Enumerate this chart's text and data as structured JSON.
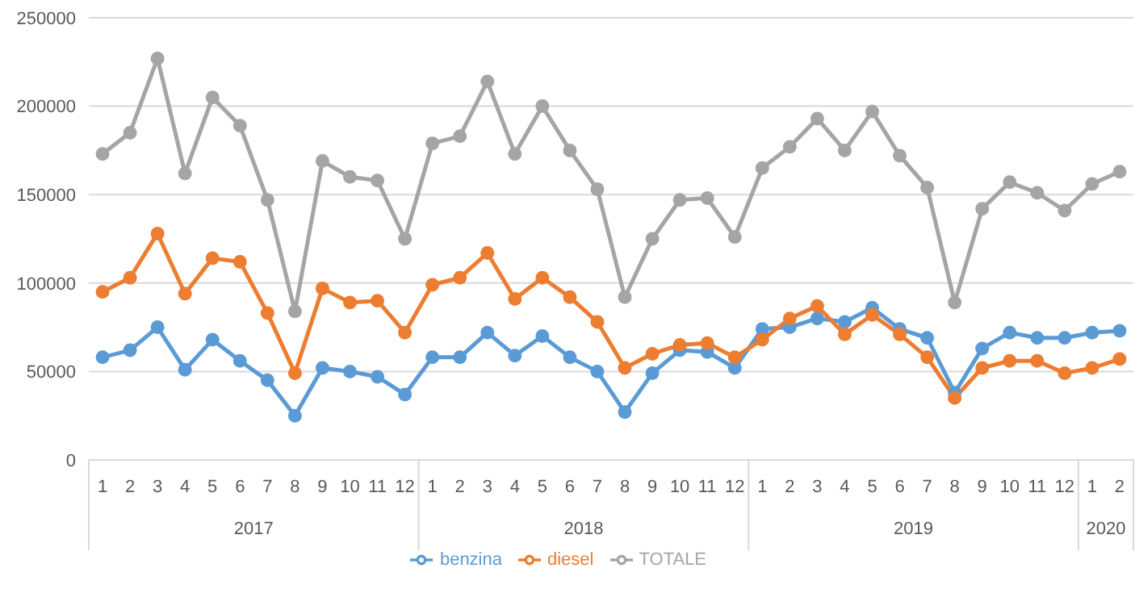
{
  "chart_data": {
    "type": "line",
    "categories": [
      "1",
      "2",
      "3",
      "4",
      "5",
      "6",
      "7",
      "8",
      "9",
      "10",
      "11",
      "12",
      "1",
      "2",
      "3",
      "4",
      "5",
      "6",
      "7",
      "8",
      "9",
      "10",
      "11",
      "12",
      "1",
      "2",
      "3",
      "4",
      "5",
      "6",
      "7",
      "8",
      "9",
      "10",
      "11",
      "12",
      "1",
      "2"
    ],
    "annotations": [
      "2017",
      "2018",
      "2019",
      "2020"
    ],
    "series": [
      {
        "name": "benzina",
        "color": "#5b9bd5",
        "values": [
          58000,
          62000,
          75000,
          51000,
          68000,
          56000,
          45000,
          25000,
          52000,
          50000,
          47000,
          37000,
          58000,
          58000,
          72000,
          59000,
          70000,
          58000,
          50000,
          27000,
          49000,
          62000,
          61000,
          52000,
          74000,
          75000,
          80000,
          78000,
          86000,
          74000,
          69000,
          38000,
          63000,
          72000,
          69000,
          69000,
          72000,
          73000
        ]
      },
      {
        "name": "diesel",
        "color": "#ed7d31",
        "values": [
          95000,
          103000,
          128000,
          94000,
          114000,
          112000,
          83000,
          49000,
          97000,
          89000,
          90000,
          72000,
          99000,
          103000,
          117000,
          91000,
          103000,
          92000,
          78000,
          52000,
          60000,
          65000,
          66000,
          58000,
          68000,
          80000,
          87000,
          71000,
          82000,
          71000,
          58000,
          35000,
          52000,
          56000,
          56000,
          49000,
          52000,
          57000
        ]
      },
      {
        "name": "TOTALE",
        "color": "#a5a5a5",
        "values": [
          173000,
          185000,
          227000,
          162000,
          205000,
          189000,
          147000,
          84000,
          169000,
          160000,
          158000,
          125000,
          179000,
          183000,
          214000,
          173000,
          200000,
          175000,
          153000,
          92000,
          125000,
          147000,
          148000,
          126000,
          165000,
          177000,
          193000,
          175000,
          197000,
          172000,
          154000,
          89000,
          142000,
          157000,
          151000,
          141000,
          156000,
          163000
        ]
      }
    ],
    "ylim": [
      0,
      250000
    ],
    "yticks": [
      0,
      50000,
      100000,
      150000,
      200000,
      250000
    ],
    "grid": "y",
    "legend": "bottom",
    "marker": "circle",
    "line_style": "solid"
  }
}
